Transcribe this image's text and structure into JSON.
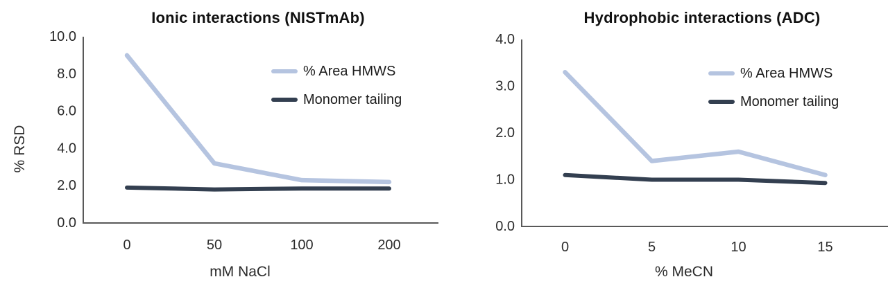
{
  "page": {
    "background": "#ffffff"
  },
  "colors": {
    "hmws": "#b5c4e0",
    "monomer": "#333f50",
    "axis": "#595959",
    "tick_text": "#2b2b2b",
    "title_text": "#111111"
  },
  "chart_data": [
    {
      "type": "line",
      "title": "Ionic interactions (NISTmAb)",
      "xlabel": "mM NaCl",
      "ylabel": "% RSD",
      "categories": [
        "0",
        "50",
        "100",
        "200"
      ],
      "yticks": [
        "0.0",
        "2.0",
        "4.0",
        "6.0",
        "8.0",
        "10.0"
      ],
      "ylim": [
        0,
        10
      ],
      "grid": false,
      "legend_position": "inside-top-right",
      "series": [
        {
          "name": "% Area HMWS",
          "color_key": "hmws",
          "values": [
            9.0,
            3.2,
            2.3,
            2.2
          ]
        },
        {
          "name": "Monomer tailing",
          "color_key": "monomer",
          "values": [
            1.9,
            1.8,
            1.85,
            1.85
          ]
        }
      ]
    },
    {
      "type": "line",
      "title": "Hydrophobic interactions (ADC)",
      "xlabel": "% MeCN",
      "ylabel": "",
      "categories": [
        "0",
        "5",
        "10",
        "15"
      ],
      "yticks": [
        "0.0",
        "1.0",
        "2.0",
        "3.0",
        "4.0"
      ],
      "ylim": [
        0,
        4
      ],
      "grid": false,
      "legend_position": "inside-top-right",
      "series": [
        {
          "name": "% Area HMWS",
          "color_key": "hmws",
          "values": [
            3.3,
            1.4,
            1.6,
            1.1
          ]
        },
        {
          "name": "Monomer tailing",
          "color_key": "monomer",
          "values": [
            1.1,
            1.0,
            1.0,
            0.93
          ]
        }
      ]
    }
  ]
}
